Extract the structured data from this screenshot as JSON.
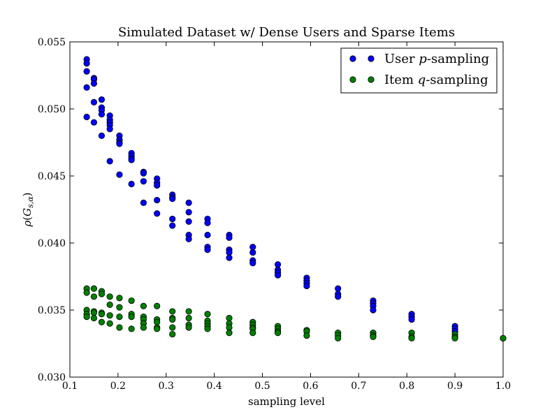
{
  "chart_data": {
    "type": "scatter",
    "title": "Simulated Dataset w/ Dense Users and Sparse Items",
    "xlabel": "sampling level",
    "ylabel": "ρ(G_{s,α})",
    "xlim": [
      0.1,
      1.0
    ],
    "ylim": [
      0.03,
      0.055
    ],
    "xticks": [
      "0.1",
      "0.2",
      "0.3",
      "0.4",
      "0.5",
      "0.6",
      "0.7",
      "0.8",
      "0.9",
      "1.0"
    ],
    "yticks": [
      "0.030",
      "0.035",
      "0.040",
      "0.045",
      "0.050",
      "0.055"
    ],
    "legend": {
      "placement": "top-right"
    },
    "grid": false,
    "series": [
      {
        "name": "User p-sampling",
        "label_parts": [
          "User ",
          "p",
          "-sampling"
        ],
        "color": "#0000ff",
        "points": [
          [
            0.135,
            0.0537
          ],
          [
            0.135,
            0.0534
          ],
          [
            0.135,
            0.0528
          ],
          [
            0.135,
            0.0516
          ],
          [
            0.135,
            0.0494
          ],
          [
            0.15,
            0.0523
          ],
          [
            0.15,
            0.0522
          ],
          [
            0.15,
            0.0519
          ],
          [
            0.15,
            0.0505
          ],
          [
            0.15,
            0.049
          ],
          [
            0.166,
            0.0507
          ],
          [
            0.166,
            0.0501
          ],
          [
            0.166,
            0.0499
          ],
          [
            0.166,
            0.0496
          ],
          [
            0.166,
            0.048
          ],
          [
            0.183,
            0.0495
          ],
          [
            0.183,
            0.0492
          ],
          [
            0.183,
            0.049
          ],
          [
            0.183,
            0.0488
          ],
          [
            0.183,
            0.0485
          ],
          [
            0.183,
            0.0461
          ],
          [
            0.203,
            0.048
          ],
          [
            0.203,
            0.0477
          ],
          [
            0.203,
            0.0475
          ],
          [
            0.203,
            0.0474
          ],
          [
            0.203,
            0.0451
          ],
          [
            0.228,
            0.0467
          ],
          [
            0.228,
            0.0465
          ],
          [
            0.228,
            0.0463
          ],
          [
            0.228,
            0.0462
          ],
          [
            0.228,
            0.0444
          ],
          [
            0.253,
            0.0453
          ],
          [
            0.253,
            0.0452
          ],
          [
            0.253,
            0.0446
          ],
          [
            0.253,
            0.043
          ],
          [
            0.281,
            0.0448
          ],
          [
            0.281,
            0.0445
          ],
          [
            0.281,
            0.0443
          ],
          [
            0.281,
            0.0432
          ],
          [
            0.281,
            0.0422
          ],
          [
            0.313,
            0.0436
          ],
          [
            0.313,
            0.0434
          ],
          [
            0.313,
            0.0433
          ],
          [
            0.313,
            0.0418
          ],
          [
            0.313,
            0.0413
          ],
          [
            0.347,
            0.043
          ],
          [
            0.347,
            0.0423
          ],
          [
            0.347,
            0.0416
          ],
          [
            0.347,
            0.0406
          ],
          [
            0.347,
            0.0403
          ],
          [
            0.386,
            0.0418
          ],
          [
            0.386,
            0.0415
          ],
          [
            0.386,
            0.0406
          ],
          [
            0.386,
            0.0397
          ],
          [
            0.386,
            0.0395
          ],
          [
            0.431,
            0.0406
          ],
          [
            0.431,
            0.0404
          ],
          [
            0.431,
            0.0395
          ],
          [
            0.431,
            0.0393
          ],
          [
            0.431,
            0.0389
          ],
          [
            0.48,
            0.0397
          ],
          [
            0.48,
            0.0393
          ],
          [
            0.48,
            0.0387
          ],
          [
            0.48,
            0.0385
          ],
          [
            0.532,
            0.0384
          ],
          [
            0.532,
            0.038
          ],
          [
            0.532,
            0.0378
          ],
          [
            0.532,
            0.0376
          ],
          [
            0.592,
            0.0374
          ],
          [
            0.592,
            0.0372
          ],
          [
            0.592,
            0.037
          ],
          [
            0.592,
            0.0368
          ],
          [
            0.657,
            0.0366
          ],
          [
            0.657,
            0.0362
          ],
          [
            0.657,
            0.036
          ],
          [
            0.73,
            0.0357
          ],
          [
            0.73,
            0.0355
          ],
          [
            0.73,
            0.0353
          ],
          [
            0.73,
            0.035
          ],
          [
            0.81,
            0.0347
          ],
          [
            0.81,
            0.0345
          ],
          [
            0.81,
            0.0343
          ],
          [
            0.9,
            0.0338
          ],
          [
            0.9,
            0.0336
          ],
          [
            0.9,
            0.0334
          ],
          [
            1.0,
            0.0329
          ]
        ]
      },
      {
        "name": "Item q-sampling",
        "label_parts": [
          "Item ",
          "q",
          "-sampling"
        ],
        "color": "#008000",
        "points": [
          [
            0.135,
            0.0366
          ],
          [
            0.135,
            0.0363
          ],
          [
            0.135,
            0.035
          ],
          [
            0.135,
            0.0347
          ],
          [
            0.135,
            0.0345
          ],
          [
            0.15,
            0.0366
          ],
          [
            0.15,
            0.036
          ],
          [
            0.15,
            0.0349
          ],
          [
            0.15,
            0.0348
          ],
          [
            0.15,
            0.0344
          ],
          [
            0.166,
            0.0364
          ],
          [
            0.166,
            0.0362
          ],
          [
            0.166,
            0.0348
          ],
          [
            0.166,
            0.0347
          ],
          [
            0.166,
            0.0341
          ],
          [
            0.183,
            0.036
          ],
          [
            0.183,
            0.0354
          ],
          [
            0.183,
            0.0346
          ],
          [
            0.183,
            0.034
          ],
          [
            0.203,
            0.0359
          ],
          [
            0.203,
            0.0352
          ],
          [
            0.203,
            0.0345
          ],
          [
            0.203,
            0.0337
          ],
          [
            0.228,
            0.0357
          ],
          [
            0.228,
            0.0347
          ],
          [
            0.228,
            0.0345
          ],
          [
            0.228,
            0.0336
          ],
          [
            0.253,
            0.0353
          ],
          [
            0.253,
            0.0345
          ],
          [
            0.253,
            0.0343
          ],
          [
            0.253,
            0.034
          ],
          [
            0.253,
            0.0337
          ],
          [
            0.281,
            0.0353
          ],
          [
            0.281,
            0.0343
          ],
          [
            0.281,
            0.0341
          ],
          [
            0.281,
            0.0337
          ],
          [
            0.281,
            0.0336
          ],
          [
            0.313,
            0.0349
          ],
          [
            0.313,
            0.0344
          ],
          [
            0.313,
            0.0343
          ],
          [
            0.313,
            0.0337
          ],
          [
            0.313,
            0.0332
          ],
          [
            0.347,
            0.0349
          ],
          [
            0.347,
            0.0344
          ],
          [
            0.347,
            0.0339
          ],
          [
            0.347,
            0.0337
          ],
          [
            0.386,
            0.0347
          ],
          [
            0.386,
            0.0342
          ],
          [
            0.386,
            0.034
          ],
          [
            0.386,
            0.0338
          ],
          [
            0.386,
            0.0336
          ],
          [
            0.431,
            0.0344
          ],
          [
            0.431,
            0.034
          ],
          [
            0.431,
            0.0337
          ],
          [
            0.431,
            0.0333
          ],
          [
            0.48,
            0.0341
          ],
          [
            0.48,
            0.0339
          ],
          [
            0.48,
            0.0337
          ],
          [
            0.48,
            0.0336
          ],
          [
            0.48,
            0.0333
          ],
          [
            0.532,
            0.0338
          ],
          [
            0.532,
            0.0336
          ],
          [
            0.532,
            0.0334
          ],
          [
            0.532,
            0.0333
          ],
          [
            0.592,
            0.0335
          ],
          [
            0.592,
            0.0334
          ],
          [
            0.592,
            0.0331
          ],
          [
            0.657,
            0.0333
          ],
          [
            0.657,
            0.0331
          ],
          [
            0.657,
            0.0329
          ],
          [
            0.73,
            0.0333
          ],
          [
            0.73,
            0.0331
          ],
          [
            0.73,
            0.033
          ],
          [
            0.81,
            0.0333
          ],
          [
            0.81,
            0.033
          ],
          [
            0.81,
            0.0329
          ],
          [
            0.9,
            0.0332
          ],
          [
            0.9,
            0.033
          ],
          [
            0.9,
            0.0329
          ],
          [
            1.0,
            0.0329
          ]
        ]
      }
    ]
  }
}
